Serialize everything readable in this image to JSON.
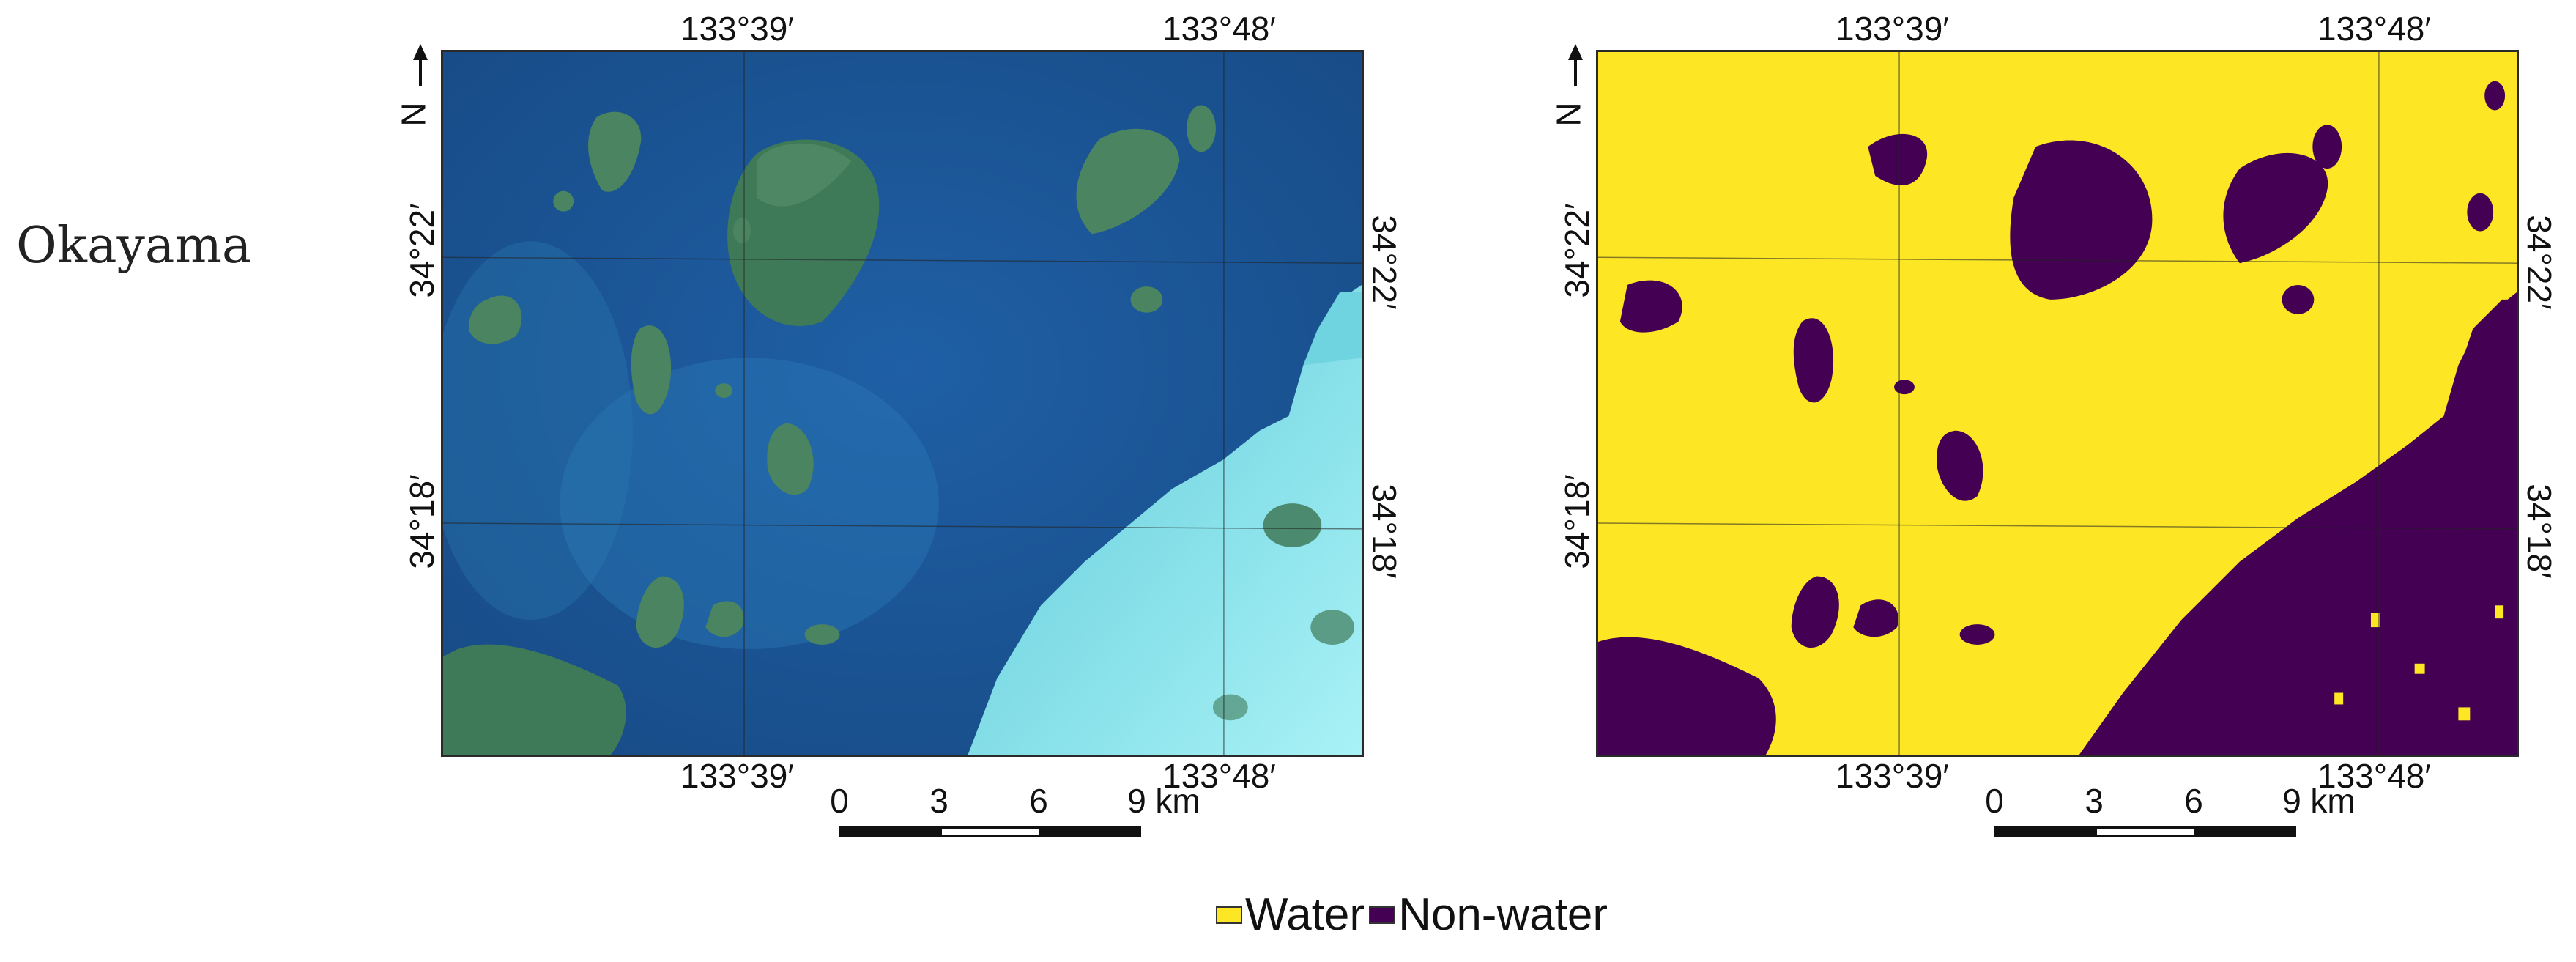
{
  "region_label": "Okayama",
  "panels": [
    {
      "name": "satellite-image",
      "top_lon_labels": [
        "133°39′",
        "133°48′"
      ],
      "bottom_lon_labels": [
        "133°39′",
        "133°48′"
      ],
      "left_lat_labels": [
        "34°22′",
        "34°18′"
      ],
      "right_lat_labels": [
        "34°22′",
        "34°18′"
      ]
    },
    {
      "name": "water-classification",
      "top_lon_labels": [
        "133°39′",
        "133°48′"
      ],
      "bottom_lon_labels": [
        "133°39′",
        "133°48′"
      ],
      "left_lat_labels": [
        "34°22′",
        "34°18′"
      ],
      "right_lat_labels": [
        "34°22′",
        "34°18′"
      ]
    }
  ],
  "north_label": "N",
  "scale_bar": {
    "ticks": [
      "0",
      "3",
      "6",
      "9"
    ],
    "unit": "km"
  },
  "legend": [
    {
      "label": "Water",
      "color": "#fde725"
    },
    {
      "label": "Non-water",
      "color": "#440154"
    }
  ],
  "colors": {
    "water_class": "#fde725",
    "nonwater_class": "#440154",
    "sea": "#1d5a9c",
    "land_green": "#3f7a58",
    "urban": "#7fe6ef"
  }
}
